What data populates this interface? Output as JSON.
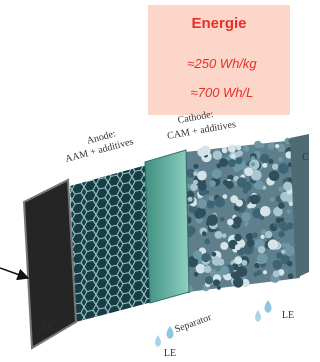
{
  "energy_box": {
    "title": "Energie",
    "lines": [
      "≈250 Wh/kg",
      "≈700 Wh/L"
    ]
  },
  "labels": {
    "anode": [
      "Anode:",
      "AAM + additives"
    ],
    "cathode": [
      "Cathode:",
      "CAM + additives"
    ],
    "cc": "CC",
    "separator": "Separator",
    "le": [
      "LE",
      "LE"
    ],
    "edge": "C"
  }
}
